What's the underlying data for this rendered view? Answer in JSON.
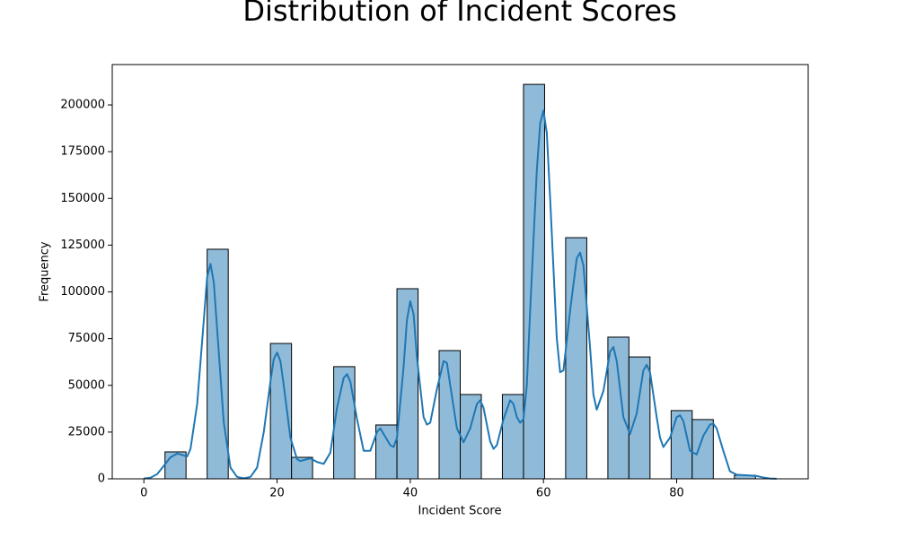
{
  "chart_data": {
    "type": "histogram",
    "title": "Distribution of Incident Scores",
    "xlabel": "Incident Score",
    "ylabel": "Frequency",
    "bins": [
      0,
      3.17,
      6.33,
      9.5,
      12.67,
      15.83,
      19,
      22.17,
      25.33,
      28.5,
      31.67,
      34.83,
      38,
      41.17,
      44.33,
      47.5,
      50.67,
      53.83,
      57,
      60.17,
      63.33,
      66.5,
      69.67,
      72.83,
      76,
      79.17,
      82.33,
      85.5,
      88.67,
      91.83,
      95
    ],
    "counts": [
      0,
      14400,
      0,
      122800,
      0,
      0,
      72400,
      11500,
      0,
      60000,
      0,
      28800,
      101700,
      0,
      68600,
      45100,
      0,
      45100,
      211000,
      0,
      129000,
      0,
      75800,
      65200,
      0,
      36500,
      31700,
      0,
      1900,
      0
    ],
    "color": "#8fbbd9",
    "edgecolor": "#000000",
    "kde": {
      "color": "#1f77b4",
      "x": [
        0,
        1,
        2,
        3,
        4,
        5,
        6,
        6.5,
        7,
        8,
        9,
        9.5,
        10,
        10.5,
        11,
        12,
        13,
        14,
        15,
        16,
        17,
        18,
        19,
        19.5,
        20,
        20.5,
        21,
        22,
        23,
        23.5,
        24,
        25,
        26,
        27,
        28,
        29,
        30,
        30.5,
        31,
        32,
        33,
        34,
        35,
        35.5,
        36,
        37,
        37.5,
        38,
        39,
        39.5,
        40,
        40.5,
        41,
        42,
        42.5,
        43,
        44,
        45,
        45.5,
        46,
        47,
        48,
        49,
        50,
        50.5,
        51,
        52,
        52.5,
        53,
        54,
        55,
        55.5,
        56,
        56.5,
        57,
        57.5,
        58,
        59,
        59.5,
        60,
        60.5,
        61,
        62,
        62.5,
        63,
        64,
        65,
        65.5,
        66,
        67,
        67.5,
        68,
        69,
        70,
        70.5,
        71,
        72,
        73,
        74,
        75,
        75.5,
        76,
        77,
        77.5,
        78,
        79,
        80,
        80.5,
        81,
        82,
        83,
        84,
        85,
        85.5,
        86,
        87,
        88,
        89,
        90,
        91,
        92,
        93,
        94,
        95
      ],
      "values": [
        200,
        600,
        2500,
        7000,
        11500,
        13500,
        12500,
        12000,
        16000,
        40000,
        85000,
        108000,
        115000,
        105000,
        80000,
        30000,
        6000,
        1000,
        300,
        1000,
        6000,
        25000,
        52000,
        64000,
        67500,
        63000,
        50000,
        22000,
        10500,
        9500,
        10000,
        11000,
        9000,
        8000,
        14000,
        38000,
        54000,
        56000,
        52000,
        32000,
        15000,
        15000,
        25000,
        27000,
        24000,
        18000,
        17000,
        22000,
        60000,
        85000,
        95000,
        88000,
        65000,
        33000,
        29000,
        30000,
        48000,
        63000,
        62000,
        50000,
        27000,
        19500,
        27000,
        40000,
        42000,
        38000,
        20000,
        16000,
        18000,
        32000,
        42000,
        40000,
        33000,
        30000,
        32000,
        50000,
        90000,
        165000,
        190000,
        197000,
        185000,
        150000,
        75000,
        57000,
        58000,
        90000,
        118000,
        121000,
        114000,
        70000,
        45000,
        37000,
        47000,
        68000,
        70500,
        63000,
        33000,
        24000,
        35000,
        58000,
        61000,
        57000,
        33000,
        22000,
        17000,
        22000,
        33000,
        34000,
        31000,
        15000,
        13000,
        23000,
        29000,
        29500,
        27000,
        15000,
        4000,
        2200,
        2000,
        1800,
        1500,
        700,
        200,
        50
      ]
    },
    "xlim": [
      -4.75,
      99.75
    ],
    "ylim": [
      0,
      221600
    ],
    "xticks": [
      0,
      20,
      40,
      60,
      80
    ],
    "yticks": [
      0,
      25000,
      50000,
      75000,
      100000,
      125000,
      150000,
      175000,
      200000
    ]
  }
}
